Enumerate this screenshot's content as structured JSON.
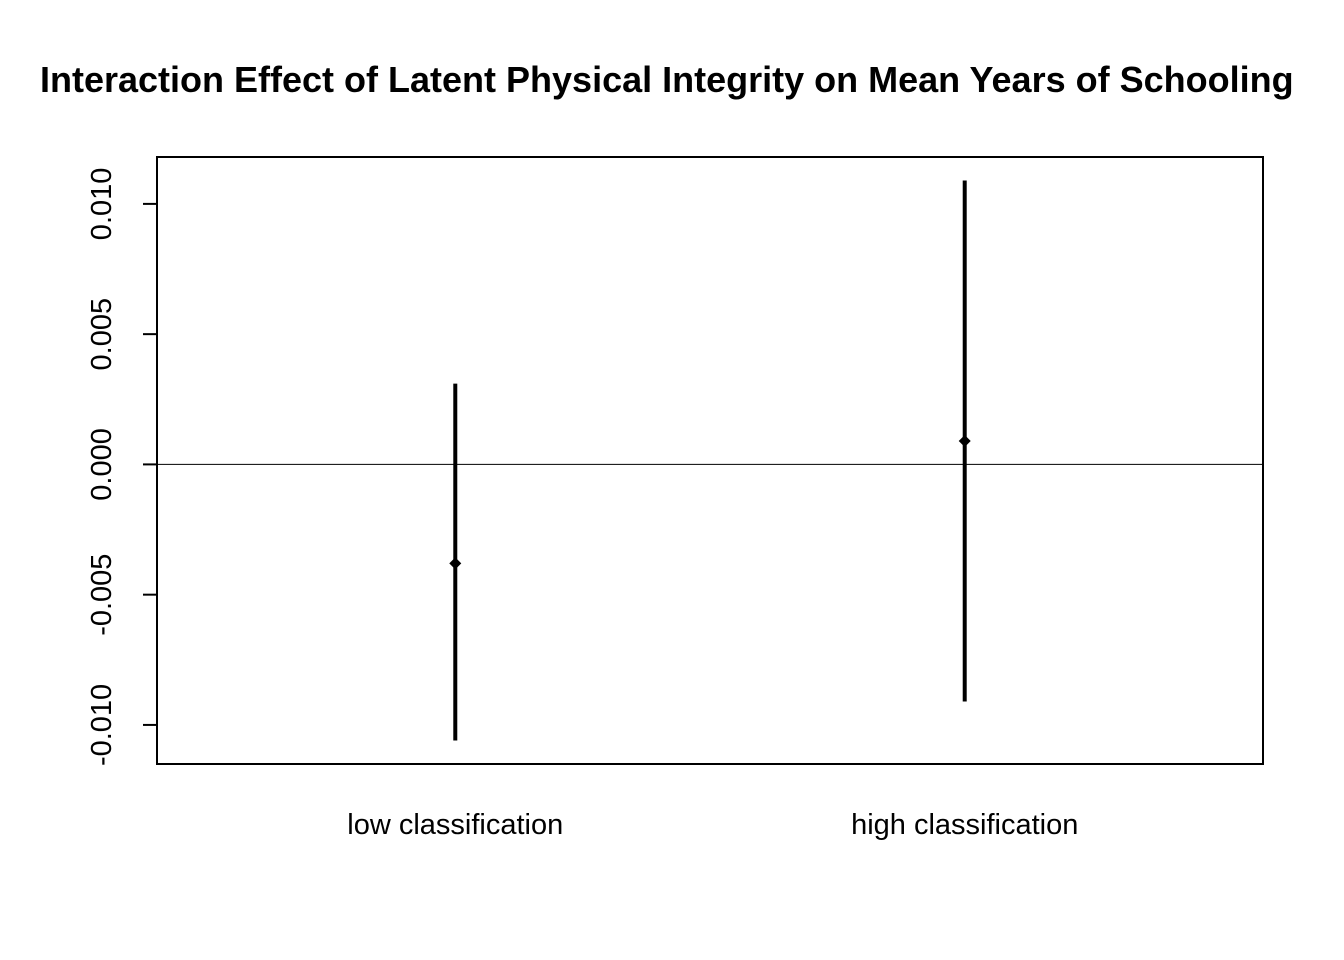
{
  "chart_data": {
    "type": "errorbar",
    "title": "Interaction Effect of Latent Physical Integrity on Mean Years of Schooling",
    "xlabel": "",
    "ylabel": "",
    "categories": [
      "low classification",
      "high classification"
    ],
    "estimates": [
      -0.0038,
      0.0009
    ],
    "lower": [
      -0.0106,
      -0.0091
    ],
    "upper": [
      0.0031,
      0.0109
    ],
    "yticks": [
      -0.01,
      -0.005,
      0.0,
      0.005,
      0.01
    ],
    "ytick_labels": [
      "-0.010",
      "-0.005",
      "0.000",
      "0.005",
      "0.010"
    ],
    "ylim": [
      -0.0115,
      0.0118
    ],
    "reference_line": 0,
    "grid": false,
    "legend": "none",
    "colors": {
      "marks": "#000000",
      "frame": "#000000"
    }
  }
}
